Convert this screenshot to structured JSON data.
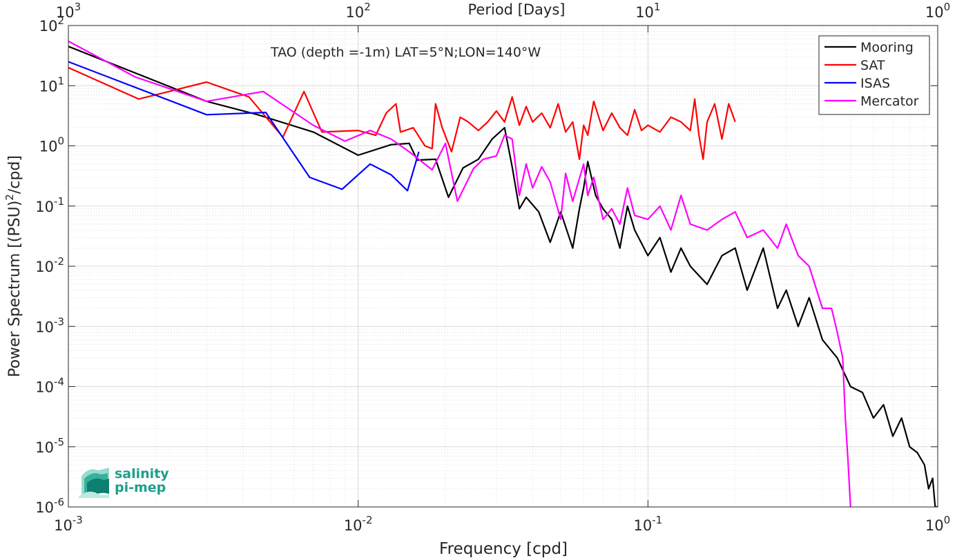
{
  "chart_data": {
    "type": "line",
    "title": "TAO (depth =-1m) LAT=5°N;LON=140°W",
    "xlabel": "Frequency [cpd]",
    "ylabel_main": "Power Spectrum [(PSU)",
    "ylabel_sup": "2",
    "ylabel_tail": "/cpd]",
    "top_axis_label": "Period [Days]",
    "x_scale": "log",
    "y_scale": "log",
    "xlim": [
      0.001,
      1
    ],
    "ylim": [
      1e-06,
      100
    ],
    "grid": true,
    "legend_position": "top-right",
    "x_ticks": [
      {
        "value": 0.001,
        "base": "10",
        "exp": "-3"
      },
      {
        "value": 0.01,
        "base": "10",
        "exp": "-2"
      },
      {
        "value": 0.1,
        "base": "10",
        "exp": "-1"
      },
      {
        "value": 1,
        "base": "10",
        "exp": "0"
      }
    ],
    "top_ticks": [
      {
        "value": 0.001,
        "base": "10",
        "exp": "3"
      },
      {
        "value": 0.01,
        "base": "10",
        "exp": "2"
      },
      {
        "value": 0.1,
        "base": "10",
        "exp": "1"
      },
      {
        "value": 1,
        "base": "10",
        "exp": "0"
      }
    ],
    "y_ticks": [
      {
        "value": 100,
        "base": "10",
        "exp": "2"
      },
      {
        "value": 10,
        "base": "10",
        "exp": "1"
      },
      {
        "value": 1,
        "base": "10",
        "exp": "0"
      },
      {
        "value": 0.1,
        "base": "10",
        "exp": "-1"
      },
      {
        "value": 0.01,
        "base": "10",
        "exp": "-2"
      },
      {
        "value": 0.001,
        "base": "10",
        "exp": "-3"
      },
      {
        "value": 0.0001,
        "base": "10",
        "exp": "-4"
      },
      {
        "value": 1e-05,
        "base": "10",
        "exp": "-5"
      },
      {
        "value": 1e-06,
        "base": "10",
        "exp": "-6"
      }
    ],
    "series": [
      {
        "name": "Mooring",
        "color": "#000000",
        "x": [
          0.001,
          0.003,
          0.0045,
          0.007,
          0.01,
          0.013,
          0.015,
          0.016,
          0.0185,
          0.0205,
          0.023,
          0.026,
          0.029,
          0.032,
          0.034,
          0.036,
          0.038,
          0.042,
          0.046,
          0.05,
          0.055,
          0.058,
          0.06,
          0.062,
          0.066,
          0.07,
          0.075,
          0.08,
          0.085,
          0.09,
          0.1,
          0.11,
          0.12,
          0.13,
          0.14,
          0.16,
          0.18,
          0.2,
          0.22,
          0.25,
          0.28,
          0.3,
          0.33,
          0.36,
          0.4,
          0.45,
          0.5,
          0.55,
          0.6,
          0.65,
          0.7,
          0.75,
          0.8,
          0.85,
          0.9,
          0.93,
          0.96,
          0.98,
          1.0
        ],
        "y": [
          45,
          5.5,
          3.3,
          1.7,
          0.7,
          1.05,
          1.1,
          0.58,
          0.6,
          0.14,
          0.43,
          0.6,
          1.3,
          2.0,
          0.45,
          0.09,
          0.14,
          0.08,
          0.025,
          0.08,
          0.02,
          0.09,
          0.2,
          0.55,
          0.15,
          0.09,
          0.06,
          0.02,
          0.1,
          0.04,
          0.015,
          0.03,
          0.008,
          0.02,
          0.01,
          0.005,
          0.015,
          0.02,
          0.004,
          0.02,
          0.002,
          0.004,
          0.001,
          0.003,
          0.0006,
          0.0003,
          0.0001,
          8e-05,
          3e-05,
          5e-05,
          1.5e-05,
          3e-05,
          1e-05,
          8e-06,
          5e-06,
          2e-06,
          3e-06,
          1e-06,
          1e-06
        ]
      },
      {
        "name": "SAT",
        "color": "#ff0000",
        "x": [
          0.001,
          0.00175,
          0.003,
          0.0042,
          0.0055,
          0.0065,
          0.0075,
          0.01,
          0.0115,
          0.0125,
          0.0135,
          0.014,
          0.0155,
          0.017,
          0.018,
          0.0185,
          0.0195,
          0.021,
          0.0225,
          0.024,
          0.026,
          0.028,
          0.03,
          0.032,
          0.034,
          0.036,
          0.038,
          0.04,
          0.043,
          0.046,
          0.049,
          0.052,
          0.055,
          0.058,
          0.06,
          0.062,
          0.065,
          0.07,
          0.075,
          0.08,
          0.085,
          0.09,
          0.095,
          0.1,
          0.11,
          0.12,
          0.13,
          0.14,
          0.145,
          0.15,
          0.155,
          0.16,
          0.17,
          0.18,
          0.19,
          0.2
        ],
        "y": [
          20,
          6,
          11.5,
          6.5,
          1.4,
          8,
          1.7,
          1.8,
          1.5,
          3.5,
          5,
          1.7,
          2,
          1,
          0.9,
          5,
          2,
          0.8,
          3,
          2.5,
          1.8,
          2.5,
          3.8,
          2.5,
          6.5,
          2.2,
          4.5,
          2.5,
          3.5,
          2,
          5,
          1.7,
          2.5,
          0.6,
          2.2,
          1.5,
          5.5,
          1.8,
          3.5,
          2,
          1.5,
          4,
          1.8,
          2.2,
          1.7,
          3,
          2.5,
          1.8,
          6,
          1.5,
          0.6,
          2.5,
          5,
          1.3,
          5,
          2.5
        ]
      },
      {
        "name": "ISAS",
        "color": "#0000ff",
        "x": [
          0.001,
          0.003,
          0.0048,
          0.0068,
          0.0088,
          0.011,
          0.013,
          0.0148,
          0.0162
        ],
        "y": [
          25,
          3.3,
          3.6,
          0.3,
          0.19,
          0.5,
          0.33,
          0.18,
          0.8
        ]
      },
      {
        "name": "Mercator",
        "color": "#ff00ff",
        "x": [
          0.001,
          0.0017,
          0.003,
          0.0047,
          0.007,
          0.009,
          0.011,
          0.013,
          0.015,
          0.018,
          0.02,
          0.022,
          0.025,
          0.027,
          0.03,
          0.032,
          0.034,
          0.036,
          0.038,
          0.04,
          0.043,
          0.046,
          0.05,
          0.052,
          0.055,
          0.06,
          0.062,
          0.065,
          0.07,
          0.075,
          0.08,
          0.085,
          0.09,
          0.1,
          0.11,
          0.12,
          0.13,
          0.14,
          0.16,
          0.18,
          0.2,
          0.22,
          0.25,
          0.28,
          0.3,
          0.33,
          0.36,
          0.4,
          0.43,
          0.45,
          0.47,
          0.48,
          0.49,
          0.5
        ],
        "y": [
          55,
          14,
          5.5,
          8,
          2.2,
          1.2,
          1.8,
          1.3,
          0.8,
          0.4,
          1.1,
          0.12,
          0.42,
          0.6,
          0.68,
          1.5,
          1.3,
          0.15,
          0.5,
          0.2,
          0.45,
          0.25,
          0.06,
          0.35,
          0.12,
          0.5,
          0.15,
          0.3,
          0.06,
          0.09,
          0.05,
          0.2,
          0.07,
          0.06,
          0.1,
          0.04,
          0.15,
          0.05,
          0.04,
          0.06,
          0.08,
          0.03,
          0.04,
          0.02,
          0.05,
          0.015,
          0.01,
          0.002,
          0.002,
          0.0008,
          0.0003,
          3e-05,
          6e-06,
          1e-06
        ]
      }
    ]
  },
  "logo": {
    "line1": "salinity",
    "line2": "pi-mep",
    "color": "#1aa08c"
  }
}
